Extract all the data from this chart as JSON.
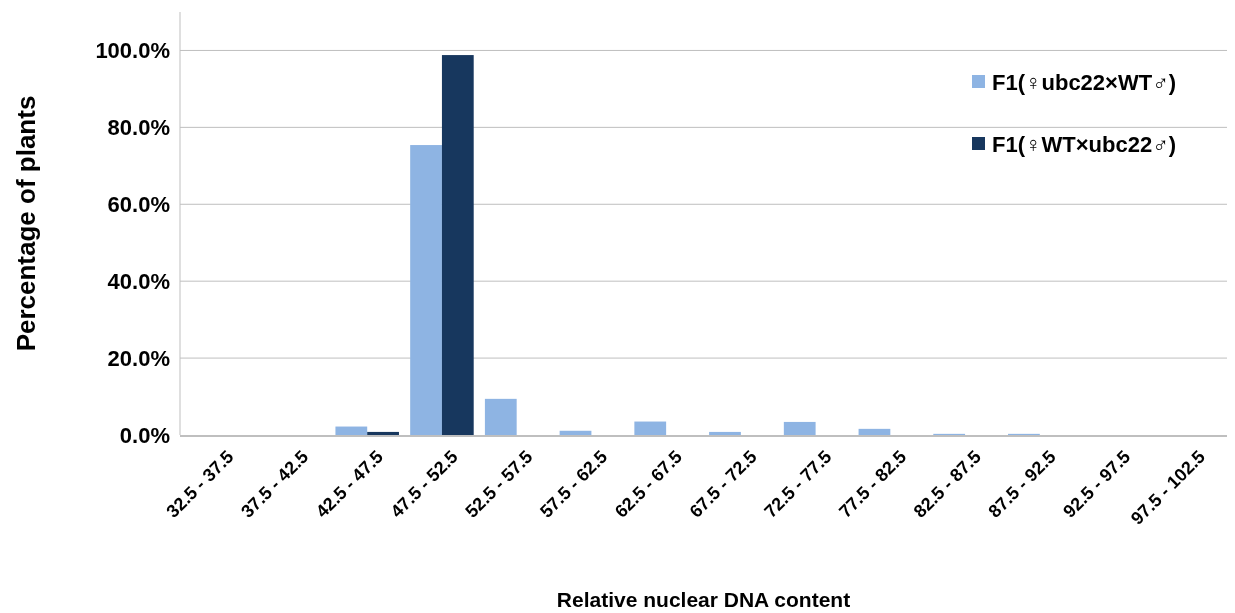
{
  "chart_data": {
    "type": "bar",
    "xlabel": "Relative nuclear DNA content",
    "ylabel": "Percentage of plants",
    "categories": [
      "32.5 - 37.5",
      "37.5 - 42.5",
      "42.5 - 47.5",
      "47.5 - 52.5",
      "52.5 - 57.5",
      "57.5 - 62.5",
      "62.5 - 67.5",
      "67.5 - 72.5",
      "72.5 - 77.5",
      "77.5 - 82.5",
      "82.5 - 87.5",
      "87.5 - 92.5",
      "92.5 - 97.5",
      "97.5 - 102.5"
    ],
    "series": [
      {
        "name": "F1(♀ubc22×WT♂)",
        "color": "#8eb4e3",
        "values": [
          0,
          0,
          2.2,
          75.4,
          9.4,
          1.1,
          3.5,
          0.8,
          3.4,
          1.6,
          0.3,
          0.3,
          0,
          0
        ]
      },
      {
        "name": "F1(♀WT×ubc22♂)",
        "color": "#17375e",
        "values": [
          0,
          0,
          0.8,
          98.8,
          0,
          0,
          0,
          0,
          0,
          0,
          0,
          0,
          0,
          0
        ]
      }
    ],
    "ylim": [
      0,
      110
    ],
    "yticks": [
      {
        "value": 0,
        "label": "0.0%"
      },
      {
        "value": 20,
        "label": "20.0%"
      },
      {
        "value": 40,
        "label": "40.0%"
      },
      {
        "value": 60,
        "label": "60.0%"
      },
      {
        "value": 80,
        "label": "80.0%"
      },
      {
        "value": 100,
        "label": "100.0%"
      }
    ],
    "grid": "y",
    "legend": "top right"
  }
}
